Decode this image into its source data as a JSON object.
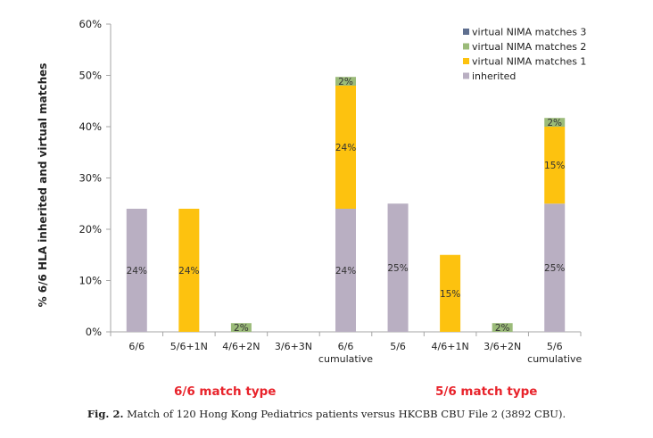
{
  "chart_data": {
    "type": "bar",
    "stacked": true,
    "title": "",
    "xlabel": "",
    "ylabel": "% 6/6 HLA  inherited and virtual matches",
    "ylim": [
      0,
      60
    ],
    "yticks": [
      0,
      10,
      20,
      30,
      40,
      50,
      60
    ],
    "ytick_labels": [
      "0%",
      "10%",
      "20%",
      "30%",
      "40%",
      "50%",
      "60%"
    ],
    "grid": false,
    "legend_position": "top-right",
    "categories": [
      [
        "6/6"
      ],
      [
        "5/6+1N"
      ],
      [
        "4/6+2N"
      ],
      [
        "3/6+3N"
      ],
      [
        "6/6",
        "cumulative"
      ],
      [
        "5/6"
      ],
      [
        "4/6+1N"
      ],
      [
        "3/6+2N"
      ],
      [
        "5/6",
        "cumulative"
      ]
    ],
    "series": [
      {
        "name": "inherited",
        "color": "#b9afc2",
        "values": [
          24,
          0,
          0,
          0,
          24,
          25,
          0,
          0,
          25
        ],
        "labels": [
          "24%",
          "",
          "",
          "",
          "24%",
          "25%",
          "",
          "",
          "25%"
        ]
      },
      {
        "name": "virtual NIMA matches 1",
        "color": "#fdc20f",
        "values": [
          0,
          24,
          0,
          0,
          24,
          0,
          15,
          0,
          15
        ],
        "labels": [
          "",
          "24%",
          "",
          "",
          "24%",
          "",
          "15%",
          "",
          "15%"
        ]
      },
      {
        "name": "virtual NIMA matches 2",
        "color": "#9bbb79",
        "values": [
          0,
          0,
          1.7,
          0,
          1.7,
          0,
          0,
          1.7,
          1.7
        ],
        "labels": [
          "",
          "",
          "2%",
          "",
          "2%",
          "",
          "",
          "2%",
          "2%"
        ]
      },
      {
        "name": "virtual NIMA matches 3",
        "color": "#5f6f8f",
        "values": [
          0,
          0,
          0,
          0,
          0,
          0,
          0,
          0,
          0
        ],
        "labels": [
          "",
          "",
          "",
          "",
          "",
          "",
          "",
          "",
          ""
        ]
      }
    ],
    "legend_order": [
      "virtual NIMA matches 3",
      "virtual NIMA matches 2",
      "virtual NIMA matches 1",
      "inherited"
    ],
    "group_labels": [
      "6/6 match type",
      "5/6 match type"
    ]
  },
  "caption": {
    "prefix": "Fig. 2.",
    "text": " Match of 120 Hong Kong Pediatrics patients versus HKCBB CBU File 2 (3892 CBU)."
  }
}
